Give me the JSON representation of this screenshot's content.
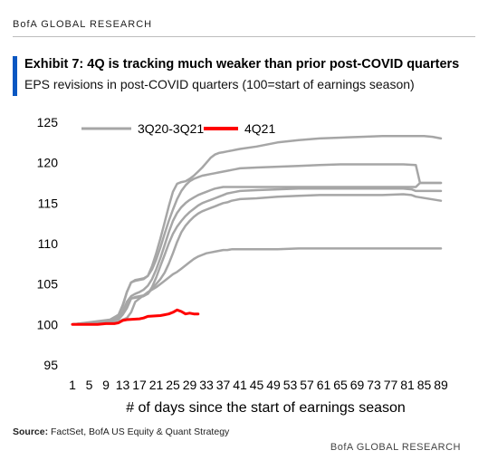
{
  "header": {
    "brand": "BofA GLOBAL RESEARCH"
  },
  "exhibit": {
    "title": "Exhibit 7: 4Q is tracking much weaker than prior post-COVID quarters",
    "subtitle": "EPS revisions in post-COVID quarters (100=start of earnings season)"
  },
  "chart_data": {
    "type": "line",
    "title": "Exhibit 7: 4Q is tracking much weaker than prior post-COVID quarters",
    "subtitle": "EPS revisions in post-COVID quarters (100=start of earnings season)",
    "xlabel": "# of days since the start of earnings season",
    "ylabel": "",
    "ylim": [
      95,
      125
    ],
    "yticks": [
      95,
      100,
      105,
      110,
      115,
      120,
      125
    ],
    "xlim": [
      1,
      89
    ],
    "xtick_labels": [
      "1",
      "5",
      "9",
      "13",
      "17",
      "21",
      "25",
      "29",
      "33",
      "37",
      "41",
      "45",
      "49",
      "53",
      "57",
      "61",
      "65",
      "69",
      "73",
      "77",
      "81",
      "85",
      "89"
    ],
    "grid": false,
    "legend": {
      "placement": "top-left",
      "entries": [
        "3Q20-3Q21",
        "4Q21"
      ]
    },
    "series": [
      {
        "name": "3Q20-3Q21",
        "color": "#a6a6a6",
        "x": [
          1,
          7,
          12,
          13,
          14,
          15,
          16,
          17,
          18,
          19,
          20,
          21,
          22,
          23,
          24,
          25,
          26,
          27,
          28,
          29,
          30,
          31,
          32,
          33,
          34,
          35,
          36,
          37,
          38,
          39,
          40,
          41,
          45,
          50,
          55,
          60,
          65,
          70,
          75,
          80,
          84,
          85,
          89
        ],
        "y": [
          100,
          100.1,
          100.3,
          100.6,
          100.8,
          101.5,
          102.8,
          103.2,
          103.6,
          104,
          104.3,
          104.6,
          105,
          105.4,
          105.8,
          106.2,
          106.5,
          106.9,
          107.3,
          107.7,
          108.1,
          108.4,
          108.6,
          108.8,
          108.9,
          109,
          109.1,
          109.2,
          109.2,
          109.3,
          109.3,
          109.3,
          109.3,
          109.3,
          109.4,
          109.4,
          109.4,
          109.4,
          109.4,
          109.4,
          109.4,
          109.4,
          109.4
        ]
      },
      {
        "name": "3Q20-3Q21",
        "color": "#a6a6a6",
        "x": [
          1,
          10,
          12,
          13,
          14,
          15,
          16,
          17,
          18,
          19,
          20,
          21,
          22,
          23,
          24,
          25,
          26,
          27,
          28,
          29,
          30,
          31,
          32,
          33,
          34,
          35,
          36,
          37,
          38,
          39,
          40,
          41,
          45,
          50,
          55,
          60,
          65,
          70,
          75,
          80,
          82,
          83,
          89
        ],
        "y": [
          100,
          100.5,
          100.8,
          101.5,
          102.5,
          103.2,
          103.4,
          103.5,
          103.6,
          103.8,
          104.4,
          105,
          105.6,
          106.4,
          107.5,
          108.8,
          110.2,
          111.4,
          112.2,
          112.8,
          113.3,
          113.7,
          114,
          114.2,
          114.4,
          114.6,
          114.8,
          115,
          115.1,
          115.3,
          115.4,
          115.5,
          115.6,
          115.8,
          115.9,
          116,
          116,
          116,
          116,
          116.1,
          116,
          115.8,
          115.3
        ]
      },
      {
        "name": "3Q20-3Q21",
        "color": "#a6a6a6",
        "x": [
          1,
          8,
          12,
          13,
          14,
          15,
          16,
          17,
          18,
          19,
          20,
          21,
          22,
          23,
          24,
          25,
          26,
          27,
          28,
          29,
          30,
          31,
          32,
          33,
          34,
          35,
          36,
          37,
          38,
          39,
          40,
          41,
          45,
          50,
          55,
          60,
          65,
          70,
          75,
          80,
          82,
          83,
          89
        ],
        "y": [
          100,
          100.3,
          100.6,
          101.2,
          102,
          103.2,
          103.3,
          103.4,
          103.5,
          103.8,
          104.6,
          105.8,
          107.2,
          108.6,
          110,
          111.2,
          112.1,
          112.8,
          113.4,
          113.9,
          114.3,
          114.7,
          115,
          115.2,
          115.4,
          115.6,
          115.8,
          116,
          116.2,
          116.3,
          116.4,
          116.5,
          116.6,
          116.7,
          116.8,
          116.8,
          116.8,
          116.8,
          116.8,
          116.8,
          116.7,
          116.5,
          116.5
        ]
      },
      {
        "name": "3Q20-3Q21",
        "color": "#a6a6a6",
        "x": [
          1,
          10,
          12,
          13,
          14,
          15,
          16,
          17,
          18,
          19,
          20,
          21,
          22,
          23,
          24,
          25,
          26,
          27,
          28,
          29,
          30,
          31,
          32,
          33,
          34,
          35,
          36,
          37,
          38,
          39,
          40,
          41,
          45,
          50,
          55,
          60,
          65,
          70,
          75,
          80,
          83,
          84,
          89
        ],
        "y": [
          100,
          100.4,
          100.7,
          101.5,
          102.8,
          103.5,
          103.8,
          104,
          104.3,
          104.8,
          105.6,
          106.8,
          108.2,
          109.8,
          111.4,
          112.8,
          113.8,
          114.5,
          115,
          115.4,
          115.7,
          116,
          116.2,
          116.4,
          116.6,
          116.8,
          116.9,
          117,
          117,
          117,
          117,
          117,
          117,
          117,
          117,
          117,
          117,
          117,
          117,
          117,
          117,
          117.5,
          117.5
        ]
      },
      {
        "name": "3Q20-3Q21",
        "color": "#a6a6a6",
        "x": [
          1,
          10,
          12,
          13,
          14,
          15,
          16,
          17,
          18,
          19,
          20,
          21,
          22,
          23,
          24,
          25,
          26,
          27,
          28,
          29,
          30,
          31,
          32,
          33,
          34,
          35,
          36,
          37,
          38,
          39,
          40,
          41,
          45,
          50,
          55,
          60,
          65,
          70,
          75,
          80,
          83,
          84,
          89
        ],
        "y": [
          100,
          100.5,
          101,
          102.2,
          104,
          105.2,
          105.5,
          105.6,
          105.7,
          106,
          106.8,
          108,
          109.5,
          111.2,
          112.8,
          114.2,
          115.5,
          116.5,
          117.2,
          117.7,
          118,
          118.2,
          118.4,
          118.5,
          118.6,
          118.7,
          118.8,
          118.9,
          119,
          119.1,
          119.2,
          119.3,
          119.4,
          119.5,
          119.6,
          119.7,
          119.8,
          119.8,
          119.8,
          119.8,
          119.7,
          117.5,
          117.5
        ]
      },
      {
        "name": "3Q20-3Q21",
        "color": "#a6a6a6",
        "x": [
          1,
          10,
          12,
          13,
          14,
          15,
          16,
          17,
          18,
          19,
          20,
          21,
          22,
          23,
          24,
          25,
          26,
          27,
          28,
          29,
          30,
          31,
          32,
          33,
          34,
          35,
          36,
          37,
          38,
          39,
          40,
          41,
          45,
          50,
          55,
          60,
          65,
          70,
          75,
          80,
          85,
          87,
          89
        ],
        "y": [
          100,
          100.6,
          101.2,
          102.4,
          104,
          105.2,
          105.4,
          105.5,
          105.6,
          106,
          107.2,
          108.8,
          110.6,
          112.6,
          114.6,
          116.4,
          117.4,
          117.6,
          117.7,
          118,
          118.4,
          118.9,
          119.4,
          120,
          120.6,
          121,
          121.2,
          121.3,
          121.4,
          121.5,
          121.6,
          121.7,
          122,
          122.5,
          122.8,
          123,
          123.1,
          123.2,
          123.3,
          123.3,
          123.3,
          123.2,
          123
        ]
      },
      {
        "name": "4Q21",
        "color": "#ff0000",
        "x": [
          1,
          7,
          9,
          11,
          12,
          13,
          14,
          17,
          18,
          19,
          22,
          23,
          24,
          25,
          26,
          27,
          28,
          29,
          30,
          31
        ],
        "y": [
          100,
          100,
          100.1,
          100.1,
          100.2,
          100.5,
          100.6,
          100.7,
          100.8,
          101,
          101.1,
          101.2,
          101.3,
          101.5,
          101.8,
          101.6,
          101.3,
          101.4,
          101.3,
          101.3
        ]
      }
    ]
  }
}
